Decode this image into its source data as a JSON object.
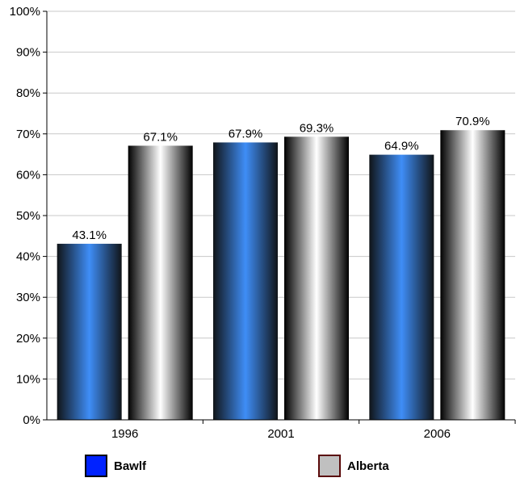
{
  "chart_data": {
    "type": "bar",
    "title": "",
    "xlabel": "",
    "ylabel": "",
    "categories": [
      "1996",
      "2001",
      "2006"
    ],
    "series": [
      {
        "name": "Bawlf",
        "values": [
          43.1,
          67.9,
          64.9
        ],
        "labels": [
          "43.1%",
          "67.9%",
          "64.9%"
        ],
        "color": "#3f8ef7",
        "legend_color": "#0022ff",
        "legend_border": "#000000"
      },
      {
        "name": "Alberta",
        "values": [
          67.1,
          69.3,
          70.9
        ],
        "labels": [
          "67.1%",
          "69.3%",
          "70.9%"
        ],
        "color": "#ffffff",
        "legend_color": "#c0c0c0",
        "legend_border": "#5a0a0a"
      }
    ],
    "ylim": [
      0,
      100
    ],
    "yticks": [
      0,
      10,
      20,
      30,
      40,
      50,
      60,
      70,
      80,
      90,
      100
    ],
    "ytick_labels": [
      "0%",
      "10%",
      "20%",
      "30%",
      "40%",
      "50%",
      "60%",
      "70%",
      "80%",
      "90%",
      "100%"
    ],
    "grid": true,
    "legend_position": "bottom"
  }
}
